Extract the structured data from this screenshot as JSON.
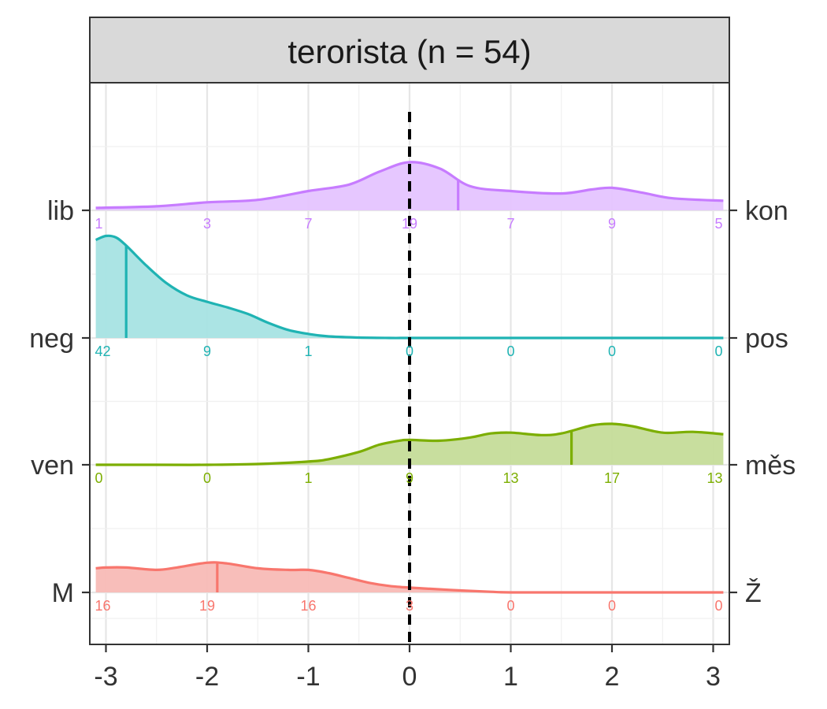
{
  "chart_data": {
    "type": "area",
    "title": "terorista (n = 54)",
    "x_ticks": [
      -3,
      -2,
      -1,
      0,
      1,
      2,
      3
    ],
    "xlim": [
      -3.1,
      3.1
    ],
    "reference_line_x": 0,
    "grid": true,
    "series": [
      {
        "left_label": "M",
        "right_label": "Ž",
        "color": "#F8766D",
        "fill": "#F8BBB6",
        "counts": [
          16,
          19,
          16,
          3,
          0,
          0,
          0
        ],
        "mean": -1.9,
        "density_x": [
          -3.1,
          -3.0,
          -2.8,
          -2.5,
          -2.3,
          -2.0,
          -1.8,
          -1.5,
          -1.2,
          -1.0,
          -0.8,
          -0.6,
          -0.4,
          -0.2,
          0.0,
          0.2,
          0.5,
          0.8,
          1.0,
          1.5,
          2.0,
          2.5,
          3.1
        ],
        "density_y": [
          0.3,
          0.31,
          0.31,
          0.28,
          0.31,
          0.37,
          0.36,
          0.3,
          0.28,
          0.28,
          0.24,
          0.18,
          0.12,
          0.08,
          0.06,
          0.045,
          0.025,
          0.008,
          0.0,
          0.0,
          0.0,
          0.0,
          0.0
        ]
      },
      {
        "left_label": "ven",
        "right_label": "měs",
        "color": "#7CAE00",
        "fill": "#C5DC99",
        "counts": [
          0,
          0,
          1,
          9,
          13,
          17,
          13
        ],
        "mean": 1.6,
        "density_x": [
          -3.1,
          -2.5,
          -2.0,
          -1.5,
          -1.0,
          -0.8,
          -0.5,
          -0.3,
          -0.1,
          0.0,
          0.3,
          0.6,
          0.8,
          1.0,
          1.3,
          1.5,
          1.8,
          2.0,
          2.2,
          2.5,
          2.8,
          3.1
        ],
        "density_y": [
          0.0,
          0.0,
          0.0,
          0.01,
          0.04,
          0.07,
          0.16,
          0.25,
          0.3,
          0.31,
          0.3,
          0.34,
          0.39,
          0.4,
          0.37,
          0.39,
          0.49,
          0.51,
          0.48,
          0.4,
          0.41,
          0.38
        ]
      },
      {
        "left_label": "neg",
        "right_label": "pos",
        "color": "#1FB3B3",
        "fill": "#A7E3E3",
        "counts": [
          42,
          9,
          1,
          0,
          0,
          0,
          0
        ],
        "mean": -2.8,
        "density_x": [
          -3.1,
          -3.0,
          -2.9,
          -2.8,
          -2.6,
          -2.4,
          -2.2,
          -2.0,
          -1.8,
          -1.6,
          -1.4,
          -1.2,
          -1.0,
          -0.8,
          -0.5,
          -0.2,
          0.0,
          0.5,
          1.0,
          2.0,
          3.1
        ],
        "density_y": [
          1.22,
          1.27,
          1.25,
          1.15,
          0.9,
          0.68,
          0.53,
          0.45,
          0.38,
          0.3,
          0.19,
          0.1,
          0.05,
          0.02,
          0.005,
          0.0,
          0.0,
          0.0,
          0.0,
          0.0,
          0.0
        ]
      },
      {
        "left_label": "lib",
        "right_label": "kon",
        "color": "#C77CFF",
        "fill": "#E5C4FF",
        "counts": [
          1,
          3,
          7,
          19,
          7,
          9,
          5
        ],
        "mean": 0.48,
        "density_x": [
          -3.1,
          -2.5,
          -2.0,
          -1.5,
          -1.0,
          -0.6,
          -0.3,
          0.0,
          0.3,
          0.6,
          1.0,
          1.5,
          1.8,
          2.0,
          2.3,
          2.6,
          3.1
        ],
        "density_y": [
          0.03,
          0.05,
          0.1,
          0.13,
          0.24,
          0.32,
          0.48,
          0.6,
          0.52,
          0.3,
          0.24,
          0.21,
          0.26,
          0.28,
          0.22,
          0.15,
          0.12
        ]
      }
    ]
  }
}
